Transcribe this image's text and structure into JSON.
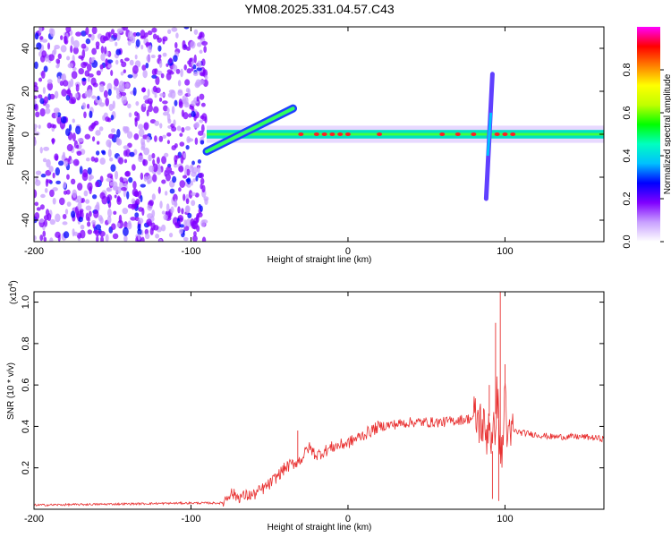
{
  "title": "YM08.2025.331.04.57.C43",
  "chart_data": [
    {
      "type": "heatmap",
      "name": "spectrogram",
      "xlabel": "Height of straight line (km)",
      "ylabel": "Frequency (Hz)",
      "xlim": [
        -200,
        163
      ],
      "ylim": [
        -50,
        50
      ],
      "xticks": [
        -200,
        -100,
        0,
        100
      ],
      "yticks": [
        -40,
        -20,
        0,
        20,
        40
      ],
      "colorbar": {
        "label": "Normalized spectral amplitude",
        "range": [
          0,
          1
        ],
        "ticks": [
          0.0,
          0.2,
          0.4,
          0.6,
          0.8
        ],
        "tick_labels": [
          "0.0",
          "0.2",
          "0.4",
          "0.6",
          "0.8"
        ],
        "colors": [
          "#ffffff",
          "#c8a0ff",
          "#8000ff",
          "#0000ff",
          "#00c0ff",
          "#00ffc0",
          "#00ff00",
          "#c0ff00",
          "#ffff00",
          "#ff8000",
          "#ff0000",
          "#ff00ff"
        ]
      },
      "features": [
        {
          "name": "noise region",
          "x_range": [
            -200,
            -90
          ],
          "freq_range": [
            -50,
            50
          ],
          "amplitude": 0.2
        },
        {
          "name": "main band",
          "x_range": [
            -90,
            163
          ],
          "freq_center": 0,
          "amplitude": 0.5
        },
        {
          "name": "rising band",
          "x_range": [
            -90,
            -35
          ],
          "freq_start": -8,
          "freq_end": 12
        },
        {
          "name": "spike",
          "x": 90,
          "freq_range": [
            -30,
            28
          ]
        }
      ],
      "peaks_x": [
        -30,
        -20,
        -15,
        -10,
        -5,
        0,
        20,
        60,
        70,
        80,
        95,
        100,
        105
      ]
    },
    {
      "type": "line",
      "name": "snr",
      "xlabel": "Height of straight line (km)",
      "ylabel": "SNR (10 * v/v)",
      "scale_label": "(x10",
      "scale_exp": "4",
      "xlim": [
        -200,
        163
      ],
      "ylim": [
        0,
        1.05
      ],
      "xticks": [
        -200,
        -100,
        0,
        100
      ],
      "yticks": [
        0.2,
        0.4,
        0.6,
        0.8,
        1.0
      ],
      "ytick_labels": [
        "0.2",
        "0.4",
        "0.6",
        "0.8",
        "1.0"
      ],
      "color": "#e83030",
      "series": [
        {
          "name": "SNR",
          "x": [
            -200,
            -150,
            -100,
            -80,
            -75,
            -70,
            -60,
            -50,
            -40,
            -30,
            -25,
            -20,
            -10,
            0,
            10,
            20,
            30,
            40,
            50,
            60,
            70,
            80,
            85,
            88,
            90,
            92,
            95,
            98,
            100,
            102,
            105,
            110,
            120,
            130,
            140,
            150,
            163
          ],
          "y": [
            0.02,
            0.025,
            0.03,
            0.03,
            0.08,
            0.06,
            0.07,
            0.12,
            0.2,
            0.24,
            0.3,
            0.26,
            0.3,
            0.32,
            0.36,
            0.4,
            0.41,
            0.42,
            0.42,
            0.42,
            0.43,
            0.44,
            0.42,
            0.35,
            0.45,
            0.28,
            0.55,
            0.2,
            0.6,
            0.3,
            0.38,
            0.37,
            0.36,
            0.35,
            0.35,
            0.35,
            0.34
          ]
        }
      ],
      "spikes": [
        {
          "x": -32,
          "y": 0.38
        },
        {
          "x": 90,
          "y": 0.6
        },
        {
          "x": 94,
          "y": 0.9
        },
        {
          "x": 97,
          "y": 1.05
        },
        {
          "x": 100,
          "y": 0.7
        },
        {
          "x": 92,
          "y": 0.05
        },
        {
          "x": 96,
          "y": 0.04
        }
      ]
    }
  ]
}
